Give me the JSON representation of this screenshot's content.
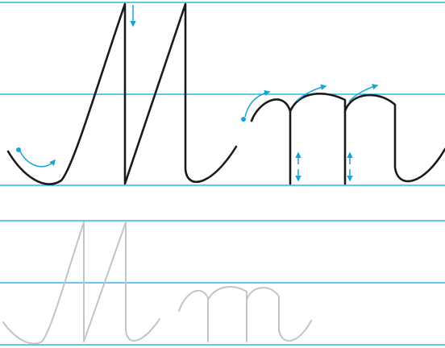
{
  "worksheet": {
    "letters": "Mm",
    "colors": {
      "guide_line": "#2fb7e6",
      "stroke": "#1a1a1a",
      "direction_arrow": "#1aa3d9",
      "trace_letter": "#c4c4c4",
      "background": "#ffffff"
    },
    "direction_icons": [
      "curved-arrow-icon",
      "down-arrow-icon",
      "curved-arrow-icon",
      "curved-arrow-icon",
      "curved-arrow-icon",
      "double-arrow-icon",
      "double-arrow-icon"
    ]
  }
}
